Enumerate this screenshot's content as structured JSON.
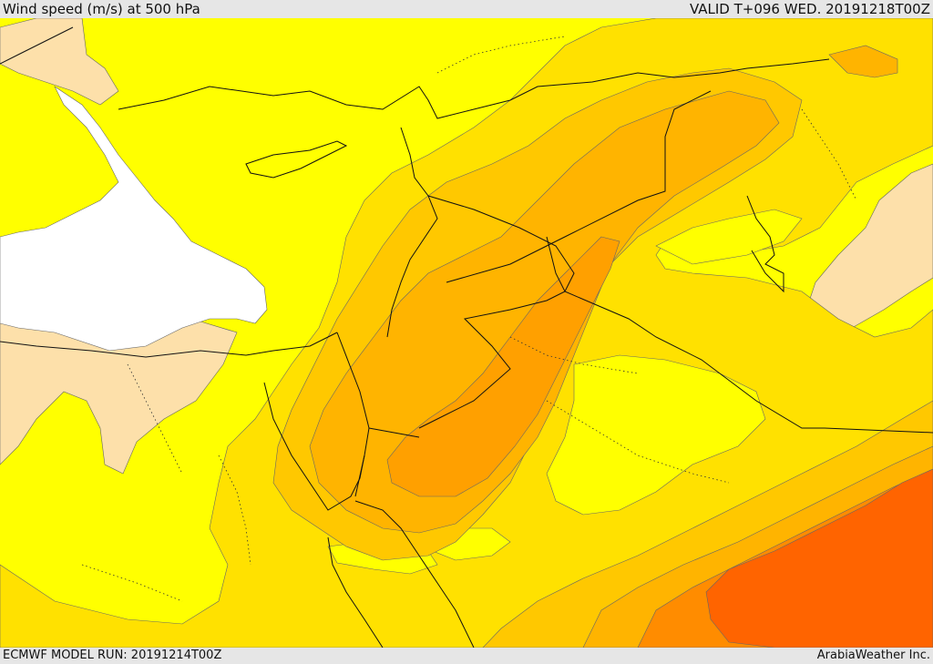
{
  "header": {
    "title": "Wind speed (m/s) at 500 hPa",
    "valid": "VALID T+096 WED. 20191218T00Z"
  },
  "footer": {
    "model_run": "ECMWF MODEL RUN: 20191214T00Z",
    "credit": "ArabiaWeather Inc."
  },
  "colors": {
    "band_lt10": "#ffffff",
    "band_10_15": "#fde0aa",
    "band_15_20": "#ffff00",
    "band_20_25": "#ffe100",
    "band_25_30": "#ffc800",
    "band_30_35": "#ffb400",
    "band_35_40": "#ffa000",
    "band_40_45": "#ff8c00",
    "band_45_50": "#ff6400"
  }
}
